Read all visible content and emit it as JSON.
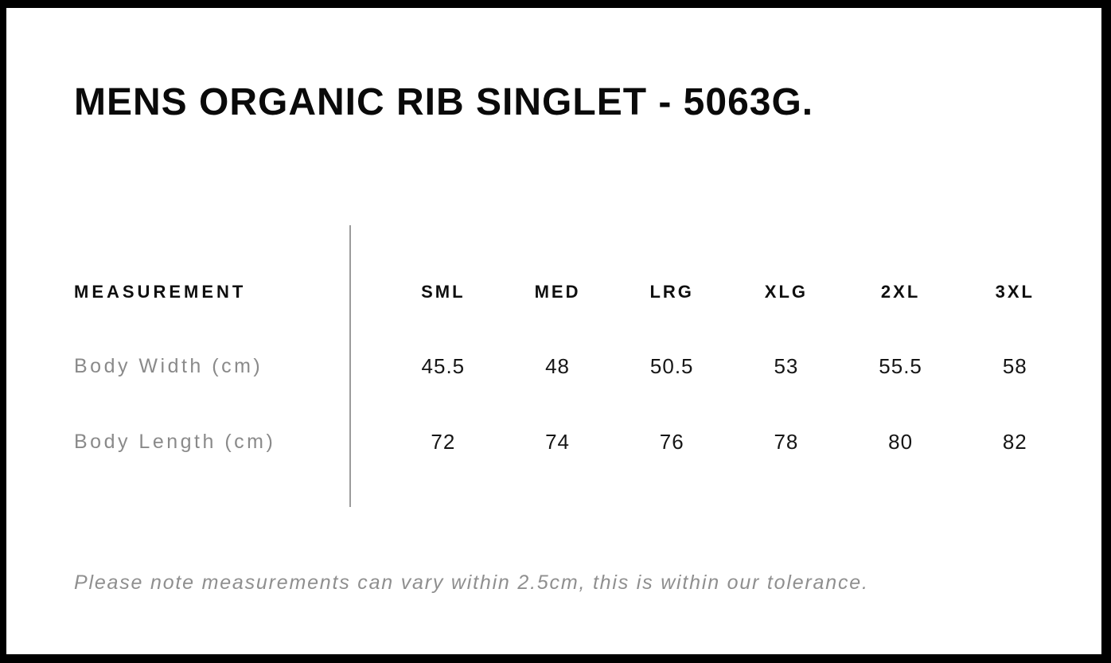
{
  "page": {
    "title": "MENS ORGANIC RIB SINGLET - 5063G.",
    "note": "Please note measurements can vary within 2.5cm, this is within our tolerance."
  },
  "size_chart": {
    "measurement_header": "MEASUREMENT",
    "sizes": [
      "SML",
      "MED",
      "LRG",
      "XLG",
      "2XL",
      "3XL"
    ],
    "rows": [
      {
        "label": "Body Width (cm)",
        "values": [
          "45.5",
          "48",
          "50.5",
          "53",
          "55.5",
          "58"
        ]
      },
      {
        "label": "Body Length (cm)",
        "values": [
          "72",
          "74",
          "76",
          "78",
          "80",
          "82"
        ]
      }
    ]
  },
  "chart_data": {
    "type": "table",
    "title": "MENS ORGANIC RIB SINGLET - 5063G.",
    "columns": [
      "MEASUREMENT",
      "SML",
      "MED",
      "LRG",
      "XLG",
      "2XL",
      "3XL"
    ],
    "rows": [
      [
        "Body Width (cm)",
        45.5,
        48,
        50.5,
        53,
        55.5,
        58
      ],
      [
        "Body Length (cm)",
        72,
        74,
        76,
        78,
        80,
        82
      ]
    ],
    "footnote": "Please note measurements can vary within 2.5cm, this is within our tolerance."
  },
  "colors": {
    "frame_border": "#000000",
    "background": "#ffffff",
    "heading_text": "#0a0a0a",
    "value_text": "#161616",
    "muted_text": "#8a8a8a",
    "divider": "#9c9c9c"
  }
}
